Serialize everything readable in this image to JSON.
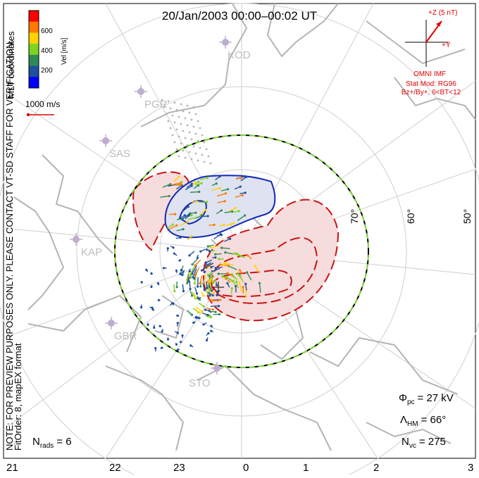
{
  "title": "20/Jan/2003 00:00–00:02 UT",
  "side_note": "NOTE: FOR PREVIEW PURPOSES ONLY. PLEASE CONTACT VT-SD STAFF FOR VERIFICATION.",
  "fit_note": "FitOrder: 8, mapEX format",
  "mlt_label": "MLT coordinates",
  "colorbar": {
    "label": "Vel [m/s]",
    "ticks": [
      "600",
      "400",
      "200"
    ],
    "colors": [
      "#ff0000",
      "#ff7a00",
      "#ffd200",
      "#7ed321",
      "#2e8b57",
      "#1f4fa0",
      "#0000ff"
    ]
  },
  "scale_vector_label": "1000 m/s",
  "imf": {
    "z_label": "+Z (5 nT)",
    "y_label": "+Y",
    "source": "OMNI IMF",
    "model_line1": "Stat Mod: RG96",
    "model_line2": "Bz+/By+, 6<BT<12"
  },
  "lat_labels": [
    "70°",
    "60°",
    "50°"
  ],
  "stations": [
    "KOD",
    "PGR",
    "SAS",
    "KAP",
    "GBR",
    "STO"
  ],
  "stats": {
    "phi_symbol": "Φ",
    "phi_sub": "pc",
    "phi_value": "= 27 kV",
    "lambda_symbol": "Λ",
    "lambda_sub": "HM",
    "lambda_value": "= 66°",
    "nvc_symbol": "N",
    "nvc_sub": "vc",
    "nvc_value": "= 275",
    "nrads_symbol": "N",
    "nrads_sub": "rads",
    "nrads_value": "= 6"
  },
  "mlt_ticks": [
    "21",
    "22",
    "23",
    "0",
    "1",
    "2",
    "3"
  ],
  "colors": {
    "grid": "#cfcfcf",
    "land": "#b4b4b4",
    "station": "#bfaed0",
    "imf_red": "#e00000",
    "pos_contour": "#c81414",
    "pos_fill": "#f6dcdc",
    "neg_contour": "#1428b4",
    "neg_fill": "#dfe2f0",
    "boundary_dash": "#79d031"
  }
}
